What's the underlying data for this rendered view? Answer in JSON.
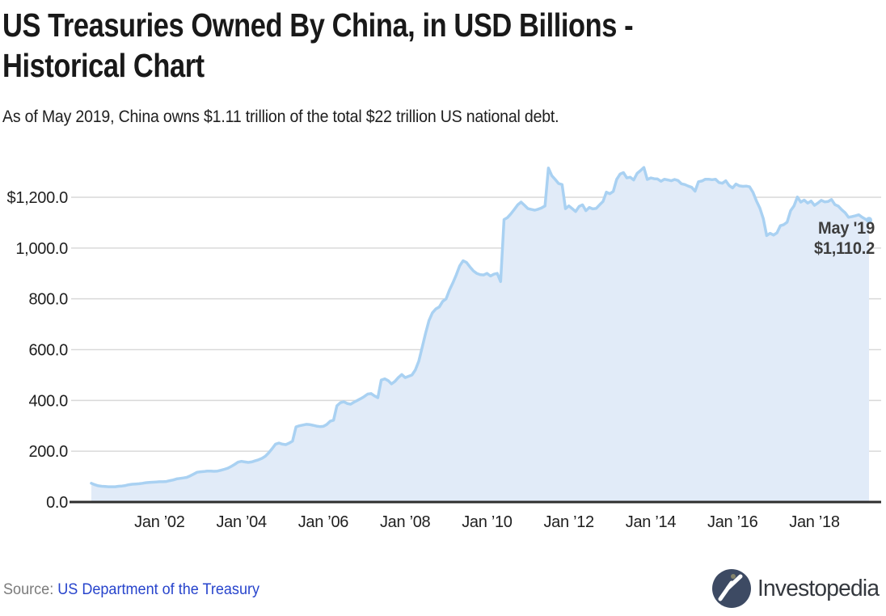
{
  "header": {
    "title": "US Treasuries Owned By China, in USD Billions -\nHistorical Chart",
    "subtitle": "As of May 2019, China owns $1.11 trillion of the total $22 trillion US national debt."
  },
  "chart_data": {
    "type": "area",
    "title": "US Treasuries Owned By China, in USD Billions - Historical Chart",
    "unit": "USD billions",
    "x_start": "2000-05",
    "x_end": "2019-05",
    "x_interval": "monthly",
    "ylim": [
      0,
      1350
    ],
    "grid": "horizontal",
    "legend": "none",
    "yticks": [
      {
        "value": 0,
        "label": "0.0"
      },
      {
        "value": 200,
        "label": "200.0"
      },
      {
        "value": 400,
        "label": "400.0"
      },
      {
        "value": 600,
        "label": "600.0"
      },
      {
        "value": 800,
        "label": "800.0"
      },
      {
        "value": 1000,
        "label": "1,000.0"
      },
      {
        "value": 1200,
        "label": "$1,200.0"
      }
    ],
    "xticks": [
      {
        "month_index": 20,
        "label": "Jan ’02"
      },
      {
        "month_index": 44,
        "label": "Jan ’04"
      },
      {
        "month_index": 68,
        "label": "Jan ’06"
      },
      {
        "month_index": 92,
        "label": "Jan ’08"
      },
      {
        "month_index": 116,
        "label": "Jan ’10"
      },
      {
        "month_index": 140,
        "label": "Jan ’12"
      },
      {
        "month_index": 164,
        "label": "Jan ’14"
      },
      {
        "month_index": 188,
        "label": "Jan ’16"
      },
      {
        "month_index": 212,
        "label": "Jan ’18"
      }
    ],
    "values": [
      74,
      68,
      64,
      62,
      61,
      60,
      60,
      60,
      62,
      63,
      65,
      68,
      70,
      71,
      72,
      74,
      76,
      77,
      78,
      79,
      80,
      80,
      81,
      84,
      87,
      91,
      93,
      95,
      97,
      103,
      110,
      117,
      119,
      120,
      122,
      122,
      121,
      122,
      125,
      129,
      133,
      140,
      148,
      157,
      160,
      158,
      156,
      158,
      162,
      166,
      172,
      180,
      194,
      210,
      228,
      232,
      228,
      226,
      232,
      240,
      296,
      300,
      303,
      306,
      305,
      302,
      299,
      297,
      298,
      305,
      318,
      322,
      379,
      391,
      395,
      388,
      385,
      393,
      400,
      407,
      415,
      425,
      427,
      418,
      411,
      480,
      485,
      478,
      465,
      475,
      490,
      502,
      490,
      495,
      500,
      520,
      555,
      610,
      665,
      715,
      745,
      760,
      768,
      790,
      800,
      835,
      863,
      895,
      930,
      950,
      943,
      926,
      910,
      900,
      895,
      894,
      900,
      890,
      897,
      900,
      868,
      1112,
      1120,
      1135,
      1152,
      1170,
      1181,
      1168,
      1155,
      1152,
      1149,
      1153,
      1158,
      1166,
      1315,
      1285,
      1270,
      1254,
      1250,
      1155,
      1166,
      1155,
      1144,
      1164,
      1170,
      1147,
      1160,
      1154,
      1156,
      1170,
      1183,
      1220,
      1214,
      1223,
      1270,
      1291,
      1297,
      1276,
      1279,
      1268,
      1294,
      1305,
      1317,
      1270,
      1276,
      1273,
      1272,
      1263,
      1271,
      1268,
      1265,
      1270,
      1266,
      1253,
      1250,
      1244,
      1239,
      1224,
      1261,
      1264,
      1271,
      1271,
      1269,
      1271,
      1258,
      1255,
      1265,
      1246,
      1237,
      1252,
      1245,
      1243,
      1244,
      1241,
      1219,
      1185,
      1157,
      1116,
      1049,
      1058,
      1051,
      1060,
      1088,
      1092,
      1102,
      1147,
      1166,
      1201,
      1181,
      1189,
      1177,
      1185,
      1168,
      1177,
      1188,
      1182,
      1183,
      1191,
      1171,
      1165,
      1151,
      1139,
      1121,
      1124,
      1127,
      1131,
      1121,
      1113,
      1110.2
    ],
    "annotation": {
      "line1": "May '19",
      "line2": "$1,110.2",
      "value": 1110.2
    },
    "colors": {
      "line": "#a9d1f2",
      "fill": "#e1ebf8",
      "gridline": "#d9d9d9",
      "axis": "#2e2e2e",
      "tick_text": "#1f1f1f",
      "annotation": "#3d3d3d"
    }
  },
  "footer": {
    "source_label": "Source:",
    "source_link": "US Department of the Treasury",
    "brand": "Investopedia",
    "brand_color": "#3d4a63"
  }
}
